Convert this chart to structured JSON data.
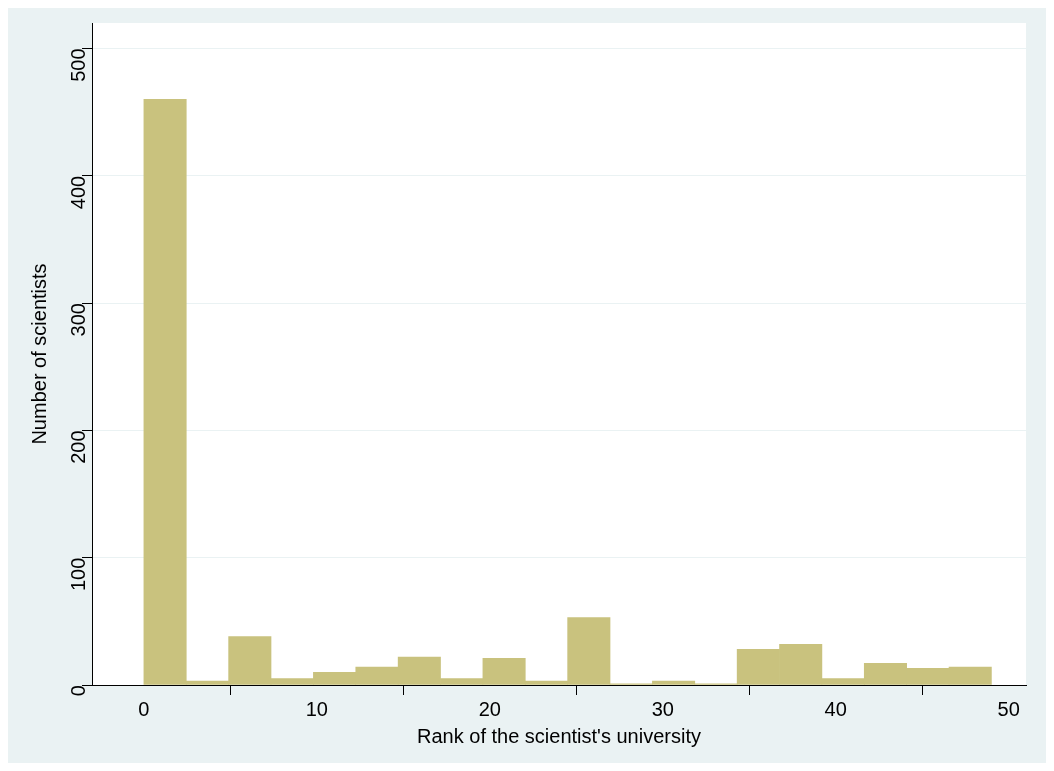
{
  "chart_data": {
    "type": "histogram",
    "xlabel": "Rank of the scientist's university",
    "ylabel": "Number of scientists",
    "bins": [
      0,
      2.45,
      4.9,
      7.35,
      9.8,
      12.25,
      14.7,
      17.15,
      19.6,
      22.05,
      24.5,
      26.95,
      29.4,
      31.85,
      34.3,
      36.75,
      39.2,
      41.65,
      44.1,
      46.55,
      49
    ],
    "values": [
      460,
      3,
      38,
      5,
      10,
      14,
      22,
      5,
      21,
      3,
      53,
      1,
      3,
      1,
      28,
      32,
      5,
      17,
      13,
      14
    ],
    "color": "#c9c27e",
    "xlim": [
      -3,
      51
    ],
    "xticks": [
      0,
      10,
      20,
      30,
      40,
      50
    ],
    "ylim": [
      0,
      520
    ],
    "yticks": [
      0,
      100,
      200,
      300,
      400,
      500
    ],
    "grid": "y",
    "legend": false
  }
}
